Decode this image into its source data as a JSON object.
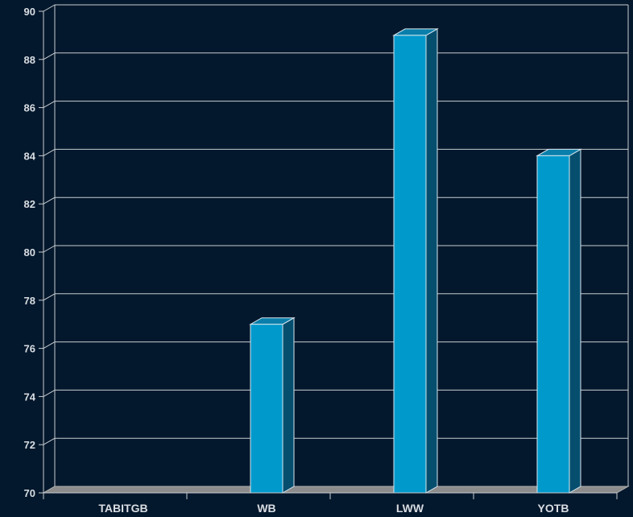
{
  "chart_data": {
    "type": "bar",
    "style": "3d",
    "categories": [
      "TABITGB",
      "WB",
      "LWW",
      "YOTB"
    ],
    "values": [
      70,
      77,
      89,
      84
    ],
    "ylim": [
      70,
      90
    ],
    "yticks": [
      70,
      72,
      74,
      76,
      78,
      80,
      82,
      84,
      86,
      88,
      90
    ],
    "title": "",
    "xlabel": "",
    "ylabel": "",
    "grid": true,
    "legend": "none",
    "colors": {
      "background": "#03182d",
      "bar_front": "#0099cc",
      "bar_top": "#0a7fab",
      "bar_side": "#064e6e",
      "floor": "#8c8c8c",
      "grid": "#c8ccd0",
      "text": "#d9dde2"
    }
  }
}
